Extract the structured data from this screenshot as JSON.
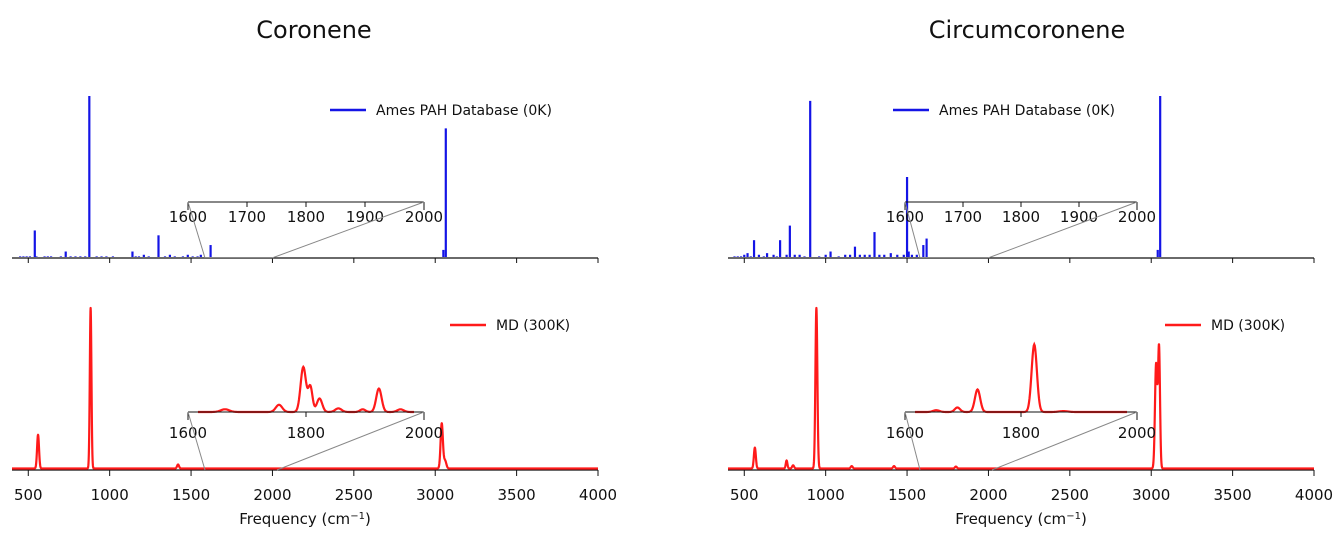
{
  "chart_data": [
    {
      "type": "line",
      "title": "Coronene",
      "xlabel": "Frequency (cm",
      "xlabel_sup": "−1",
      "xlabel_close": ")",
      "xlim": [
        400,
        4000
      ],
      "xticks": [
        "500",
        "1000",
        "1500",
        "2000",
        "2500",
        "3000",
        "3500",
        "4000"
      ],
      "panels": [
        {
          "name": "Ames PAH Database (0K)",
          "style": "stick",
          "color": "#1414e6",
          "ylim": [
            0,
            1.0
          ],
          "x": [
            450,
            470,
            490,
            510,
            540,
            550,
            600,
            620,
            640,
            700,
            730,
            760,
            790,
            820,
            850,
            875,
            920,
            950,
            980,
            1020,
            1140,
            1160,
            1180,
            1210,
            1240,
            1300,
            1340,
            1370,
            1400,
            1450,
            1480,
            1510,
            1540,
            1560,
            1620,
            3050,
            3065
          ],
          "y": [
            0.01,
            0.01,
            0.01,
            0.01,
            0.17,
            0.01,
            0.01,
            0.01,
            0.01,
            0.01,
            0.04,
            0.01,
            0.01,
            0.01,
            0.01,
            1.0,
            0.01,
            0.01,
            0.01,
            0.01,
            0.04,
            0.01,
            0.01,
            0.02,
            0.01,
            0.14,
            0.01,
            0.02,
            0.01,
            0.01,
            0.02,
            0.01,
            0.01,
            0.02,
            0.08,
            0.05,
            0.8
          ],
          "inset": {
            "xlim": [
              1600,
              2000
            ],
            "xticks": [
              "1600",
              "1700",
              "1800",
              "1900",
              "2000"
            ],
            "x": [],
            "y": []
          }
        },
        {
          "name": "MD (300K)",
          "style": "line",
          "color": "#ff1a1a",
          "ylim": [
            0,
            1.0
          ],
          "peaks": [
            {
              "x": 560,
              "h": 0.21,
              "w": 6
            },
            {
              "x": 883,
              "h": 1.0,
              "w": 5
            },
            {
              "x": 1420,
              "h": 0.025,
              "w": 6
            },
            {
              "x": 3040,
              "h": 0.28,
              "w": 7
            },
            {
              "x": 3060,
              "h": 0.05,
              "w": 8
            }
          ],
          "inset": {
            "xlim": [
              1600,
              2000
            ],
            "xticks": [
              "1600",
              "1800",
              "2000"
            ],
            "peaks": [
              {
                "x": 1650,
                "h": 0.03,
                "w": 8
              },
              {
                "x": 1750,
                "h": 0.08,
                "w": 6
              },
              {
                "x": 1795,
                "h": 0.5,
                "w": 5
              },
              {
                "x": 1808,
                "h": 0.28,
                "w": 4
              },
              {
                "x": 1825,
                "h": 0.15,
                "w": 5
              },
              {
                "x": 1860,
                "h": 0.04,
                "w": 6
              },
              {
                "x": 1905,
                "h": 0.03,
                "w": 5
              },
              {
                "x": 1935,
                "h": 0.26,
                "w": 5
              },
              {
                "x": 1975,
                "h": 0.03,
                "w": 6
              }
            ]
          }
        }
      ]
    },
    {
      "type": "line",
      "title": "Circumcoronene",
      "xlabel": "Frequency (cm",
      "xlabel_sup": "−1",
      "xlabel_close": ")",
      "xlim": [
        400,
        4000
      ],
      "xticks": [
        "500",
        "1000",
        "1500",
        "2000",
        "2500",
        "3000",
        "3500",
        "4000"
      ],
      "panels": [
        {
          "name": "Ames PAH Database (0K)",
          "style": "stick",
          "color": "#1414e6",
          "ylim": [
            0,
            1.0
          ],
          "x": [
            440,
            460,
            480,
            500,
            520,
            540,
            560,
            590,
            620,
            640,
            680,
            700,
            720,
            760,
            780,
            810,
            840,
            870,
            905,
            960,
            1000,
            1030,
            1080,
            1120,
            1150,
            1180,
            1210,
            1240,
            1270,
            1300,
            1330,
            1360,
            1400,
            1440,
            1480,
            1500,
            1510,
            1530,
            1560,
            1600,
            1620,
            3040,
            3055
          ],
          "y": [
            0.01,
            0.01,
            0.01,
            0.02,
            0.03,
            0.01,
            0.11,
            0.02,
            0.01,
            0.03,
            0.02,
            0.01,
            0.11,
            0.02,
            0.2,
            0.02,
            0.02,
            0.01,
            0.97,
            0.01,
            0.02,
            0.04,
            0.01,
            0.02,
            0.02,
            0.07,
            0.02,
            0.02,
            0.02,
            0.16,
            0.02,
            0.02,
            0.03,
            0.02,
            0.02,
            0.5,
            0.04,
            0.02,
            0.02,
            0.08,
            0.12,
            0.05,
            1.0
          ],
          "inset": {
            "xlim": [
              1600,
              2000
            ],
            "xticks": [
              "1600",
              "1700",
              "1800",
              "1900",
              "2000"
            ],
            "x": [],
            "y": []
          }
        },
        {
          "name": "MD (300K)",
          "style": "line",
          "color": "#ff1a1a",
          "ylim": [
            0,
            1.0
          ],
          "peaks": [
            {
              "x": 565,
              "h": 0.13,
              "w": 6
            },
            {
              "x": 760,
              "h": 0.05,
              "w": 5
            },
            {
              "x": 800,
              "h": 0.02,
              "w": 6
            },
            {
              "x": 943,
              "h": 1.0,
              "w": 6
            },
            {
              "x": 1160,
              "h": 0.015,
              "w": 6
            },
            {
              "x": 1420,
              "h": 0.015,
              "w": 6
            },
            {
              "x": 1800,
              "h": 0.012,
              "w": 6
            },
            {
              "x": 3030,
              "h": 0.65,
              "w": 7
            },
            {
              "x": 3048,
              "h": 0.75,
              "w": 6
            }
          ],
          "inset": {
            "xlim": [
              1600,
              2000
            ],
            "xticks": [
              "1600",
              "1800",
              "2000"
            ],
            "peaks": [
              {
                "x": 1640,
                "h": 0.02,
                "w": 6
              },
              {
                "x": 1680,
                "h": 0.05,
                "w": 5
              },
              {
                "x": 1718,
                "h": 0.25,
                "w": 5
              },
              {
                "x": 1825,
                "h": 0.75,
                "w": 5
              },
              {
                "x": 1880,
                "h": 0.01,
                "w": 8
              }
            ]
          }
        }
      ]
    }
  ]
}
